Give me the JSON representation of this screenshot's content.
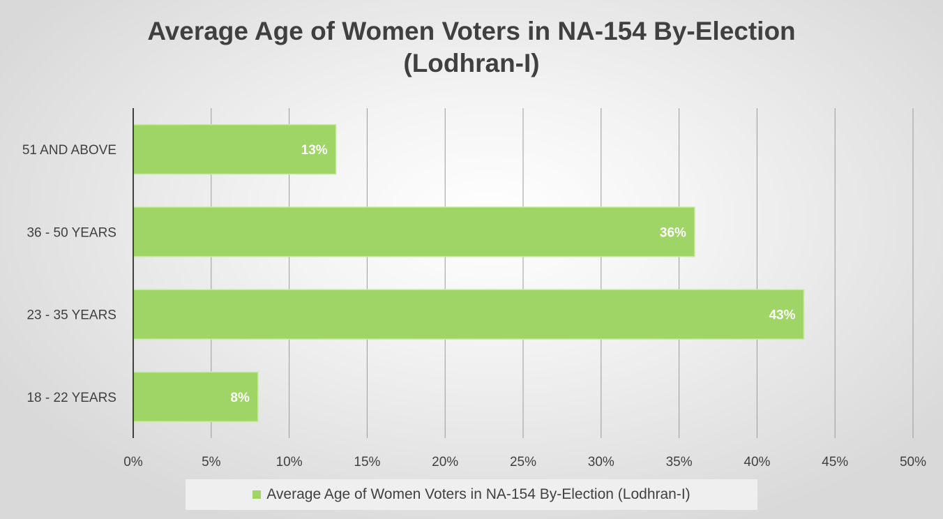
{
  "chart_data": {
    "type": "bar",
    "orientation": "horizontal",
    "title_line1": "Average Age of Women Voters in NA-154 By-Election",
    "title_line2": "(Lodhran-I)",
    "categories": [
      "51 AND ABOVE",
      "36 - 50 YEARS",
      "23 - 35 YEARS",
      "18 - 22 YEARS"
    ],
    "series": [
      {
        "name": "Average Age of Women Voters in NA-154 By-Election (Lodhran-I)",
        "values": [
          13,
          36,
          43,
          8
        ],
        "labels": [
          "13%",
          "36%",
          "43%",
          "8%"
        ],
        "color": "#9fd566"
      }
    ],
    "x_ticks": [
      "0%",
      "5%",
      "10%",
      "15%",
      "20%",
      "25%",
      "30%",
      "35%",
      "40%",
      "45%",
      "50%"
    ],
    "xlim": [
      0,
      50
    ],
    "grid": true,
    "legend_position": "bottom"
  }
}
